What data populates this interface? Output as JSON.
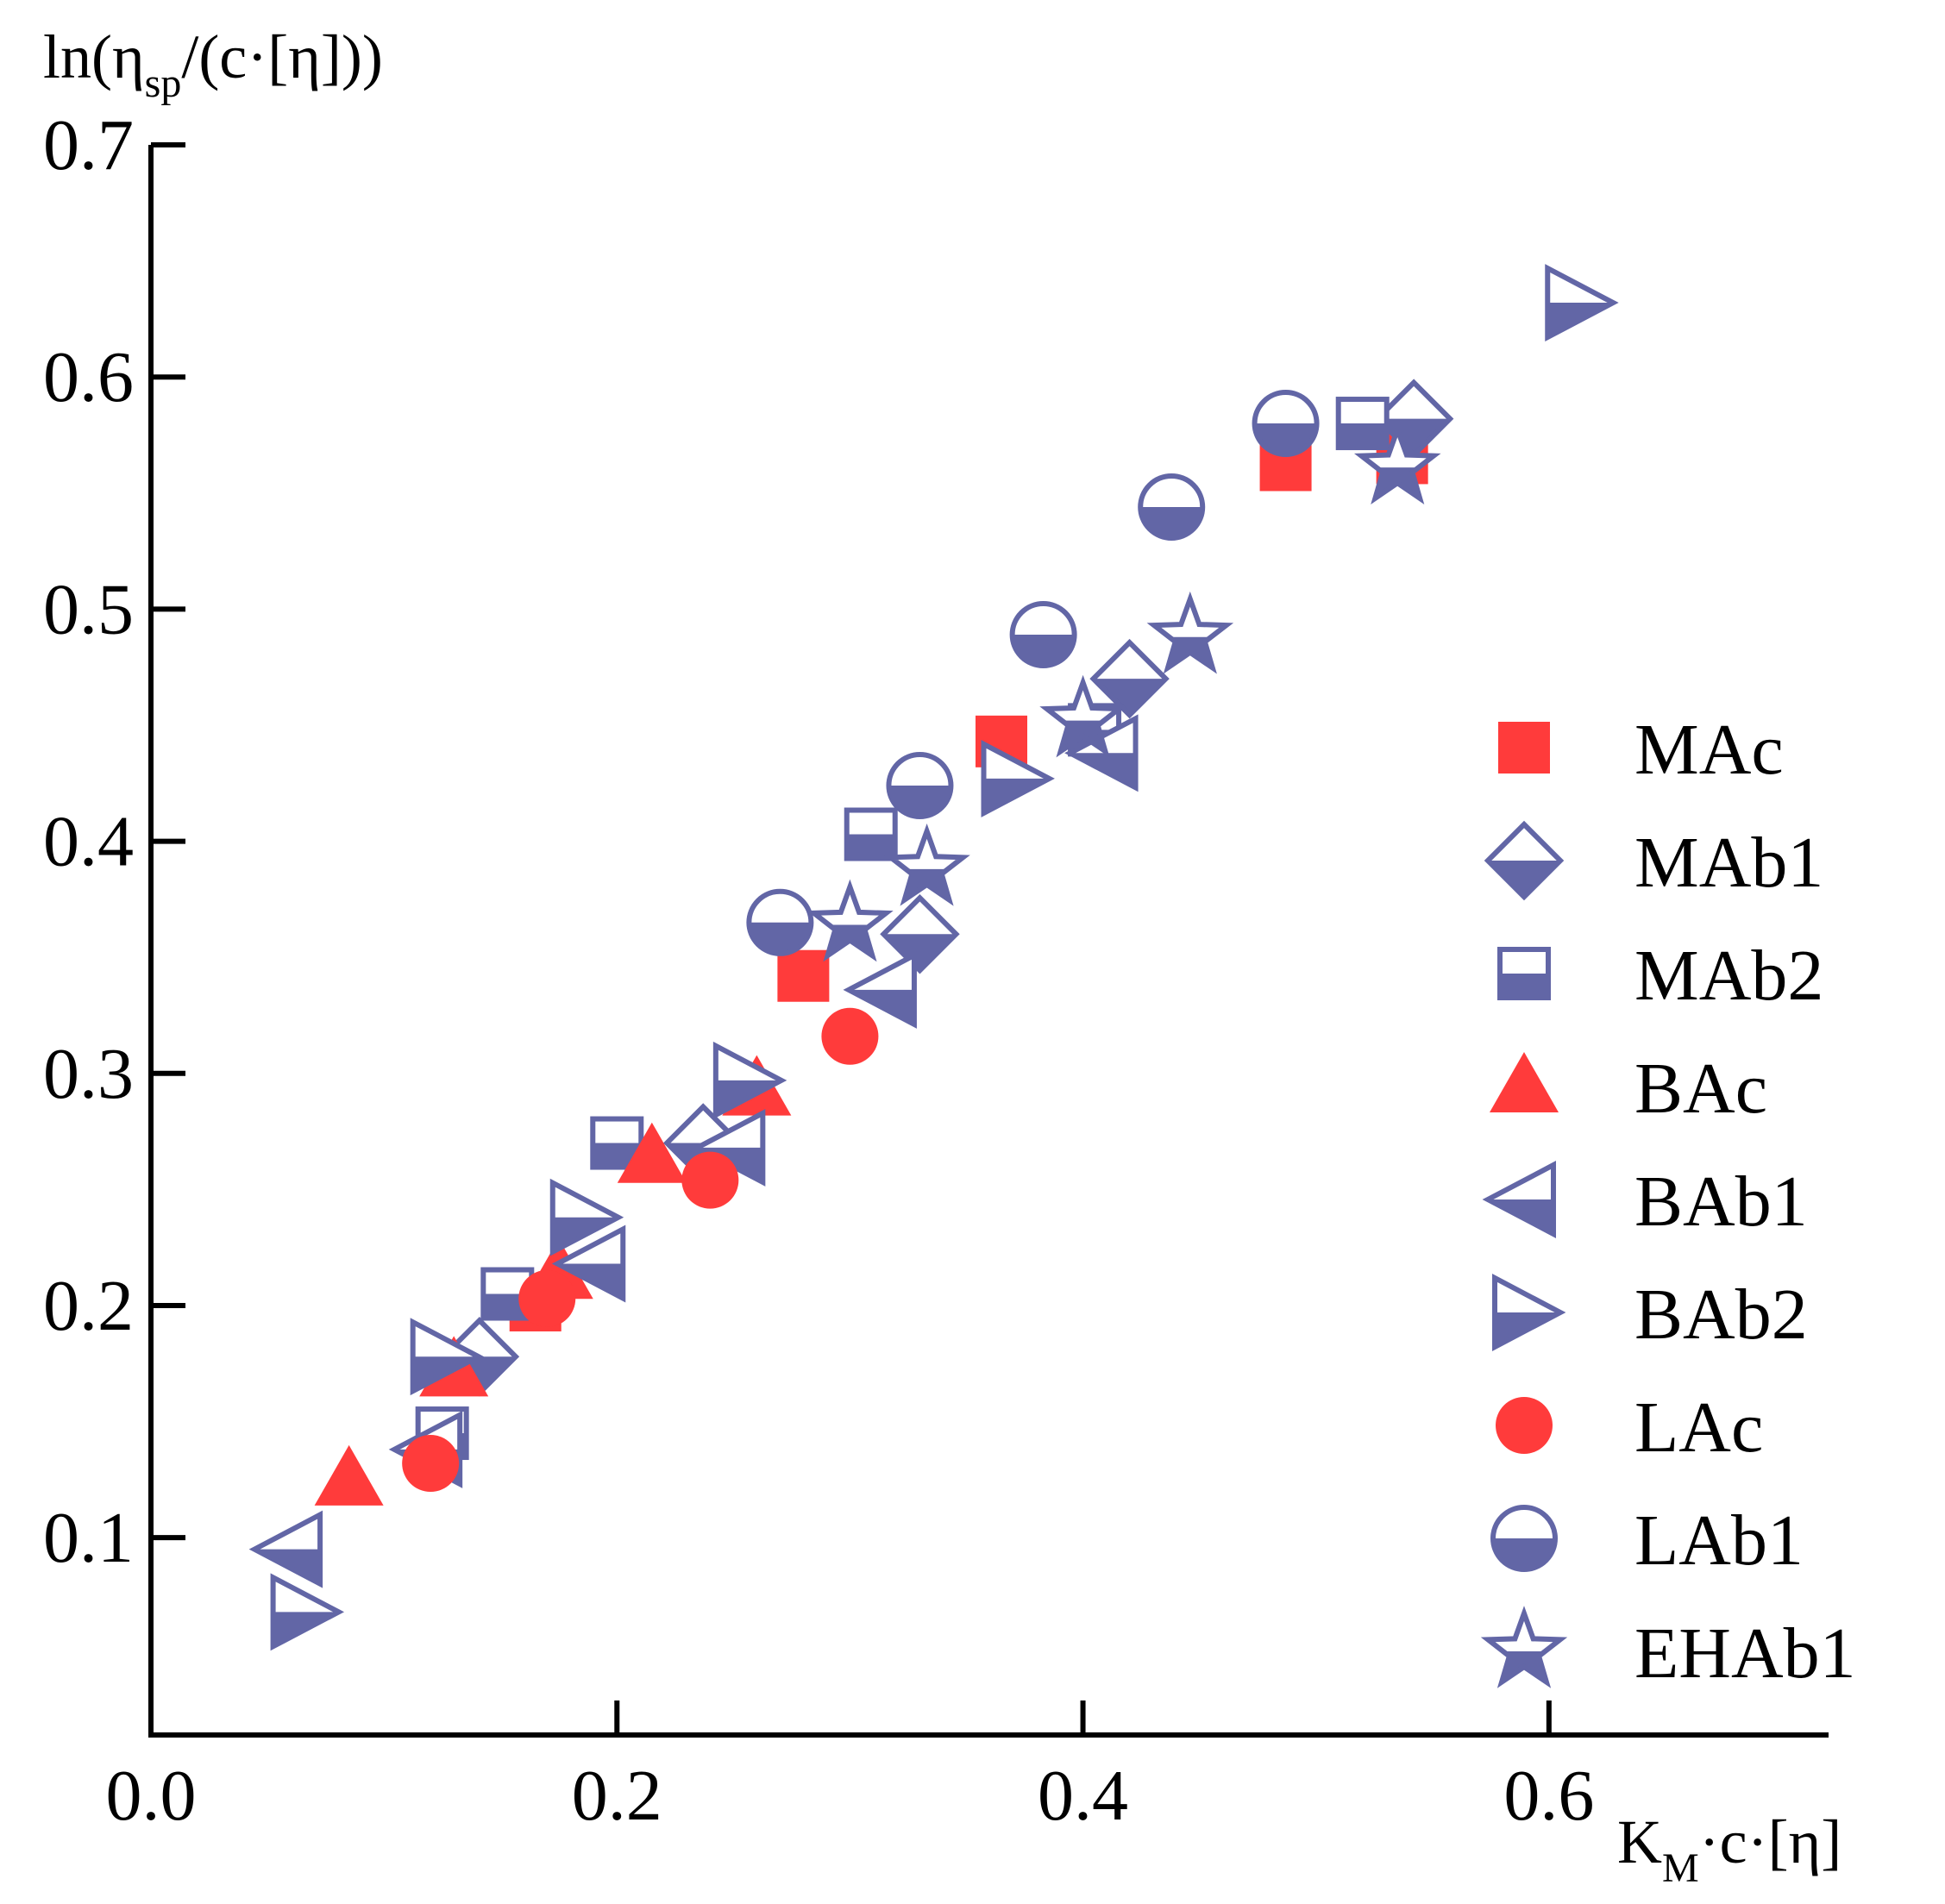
{
  "chart_data": {
    "type": "scatter",
    "title": "",
    "ylabel": {
      "main": "ln(η",
      "sub": "sp",
      "rest": "/(c·[η]))"
    },
    "xlabel": {
      "main": "K",
      "sub": "M",
      "rest": "·c·[η]"
    },
    "xlim": [
      0.0,
      0.72
    ],
    "ylim": [
      0.015,
      0.7
    ],
    "xticks": [
      0.0,
      0.2,
      0.4,
      0.6
    ],
    "xtick_labels": [
      "0.0",
      "0.2",
      "0.4",
      "0.6"
    ],
    "yticks": [
      0.1,
      0.2,
      0.3,
      0.4,
      0.5,
      0.6,
      0.7
    ],
    "ytick_labels": [
      "0.1",
      "0.2",
      "0.3",
      "0.4",
      "0.5",
      "0.6",
      "0.7"
    ],
    "grid": false,
    "legend_position": "right",
    "colors": {
      "red": "#FF3B3B",
      "purple": "#6266A6",
      "axis": "#000000"
    },
    "series": [
      {
        "name": "MAc",
        "marker": "square-filled",
        "color": "#FF3B3B",
        "x": [
          0.165,
          0.28,
          0.365,
          0.487,
          0.537
        ],
        "y": [
          0.2,
          0.342,
          0.443,
          0.562,
          0.565
        ]
      },
      {
        "name": "MAb1",
        "marker": "diamond-half",
        "color": "#6266A6",
        "x": [
          0.141,
          0.237,
          0.33,
          0.42,
          0.542
        ],
        "y": [
          0.178,
          0.27,
          0.36,
          0.47,
          0.582
        ]
      },
      {
        "name": "MAb2",
        "marker": "square-half",
        "color": "#6266A6",
        "x": [
          0.125,
          0.153,
          0.2,
          0.309,
          0.405,
          0.52
        ],
        "y": [
          0.145,
          0.205,
          0.27,
          0.403,
          0.448,
          0.58
        ]
      },
      {
        "name": "BAc",
        "marker": "triangle-up-filled",
        "color": "#FF3B3B",
        "x": [
          0.085,
          0.13,
          0.175,
          0.215,
          0.26
        ],
        "y": [
          0.125,
          0.172,
          0.214,
          0.264,
          0.293
        ]
      },
      {
        "name": "BAb1",
        "marker": "triangle-left-half",
        "color": "#6266A6",
        "x": [
          0.06,
          0.12,
          0.19,
          0.25,
          0.315,
          0.41
        ],
        "y": [
          0.095,
          0.138,
          0.218,
          0.268,
          0.336,
          0.438
        ]
      },
      {
        "name": "BAb2",
        "marker": "triangle-right-half",
        "color": "#6266A6",
        "x": [
          0.065,
          0.125,
          0.185,
          0.255,
          0.37,
          0.612
        ],
        "y": [
          0.068,
          0.178,
          0.238,
          0.297,
          0.427,
          0.632
        ]
      },
      {
        "name": "LAc",
        "marker": "circle-filled",
        "color": "#FF3B3B",
        "x": [
          0.12,
          0.17,
          0.24,
          0.3
        ],
        "y": [
          0.132,
          0.203,
          0.254,
          0.316
        ]
      },
      {
        "name": "LAb1",
        "marker": "circle-half",
        "color": "#6266A6",
        "x": [
          0.27,
          0.33,
          0.383,
          0.438,
          0.487
        ],
        "y": [
          0.365,
          0.424,
          0.489,
          0.544,
          0.58
        ]
      },
      {
        "name": "EHAb1",
        "marker": "star-half",
        "color": "#6266A6",
        "x": [
          0.3,
          0.333,
          0.4,
          0.446,
          0.535
        ],
        "y": [
          0.364,
          0.388,
          0.452,
          0.488,
          0.561
        ]
      }
    ]
  }
}
